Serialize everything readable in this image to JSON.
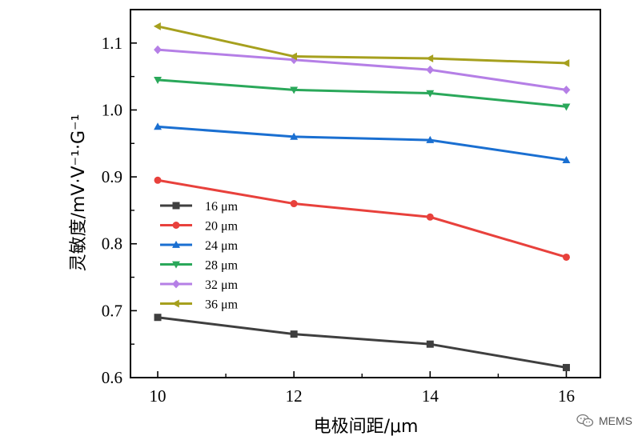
{
  "chart_data": {
    "type": "line",
    "xlabel": "电极间距/μm",
    "ylabel": "灵敏度/mV·V⁻¹·G⁻¹",
    "x": [
      10,
      12,
      14,
      16
    ],
    "xlim": [
      9.6,
      16.5
    ],
    "ylim": [
      0.6,
      1.15
    ],
    "xticks": [
      10,
      12,
      14,
      16
    ],
    "yticks": [
      "0.6",
      "0.7",
      "0.8",
      "0.9",
      "1.0",
      "1.1"
    ],
    "grid": false,
    "legend_position": "left-lower",
    "series": [
      {
        "name": "16 μm",
        "color": "#3f3f3f",
        "marker": "square",
        "values": [
          0.69,
          0.665,
          0.65,
          0.615
        ]
      },
      {
        "name": "20 μm",
        "color": "#e8413c",
        "marker": "circle",
        "values": [
          0.895,
          0.86,
          0.84,
          0.78
        ]
      },
      {
        "name": "24 μm",
        "color": "#1a6fd1",
        "marker": "triangle-up",
        "values": [
          0.975,
          0.96,
          0.955,
          0.925
        ]
      },
      {
        "name": "28 μm",
        "color": "#2aa85a",
        "marker": "triangle-down",
        "values": [
          1.045,
          1.03,
          1.025,
          1.005
        ]
      },
      {
        "name": "32 μm",
        "color": "#b57fe6",
        "marker": "diamond",
        "values": [
          1.09,
          1.075,
          1.06,
          1.03
        ]
      },
      {
        "name": "36 μm",
        "color": "#a6a01e",
        "marker": "triangle-left",
        "values": [
          1.125,
          1.08,
          1.077,
          1.07
        ]
      }
    ]
  },
  "watermark": {
    "icon": "wechat-icon",
    "text": "MEMS"
  }
}
